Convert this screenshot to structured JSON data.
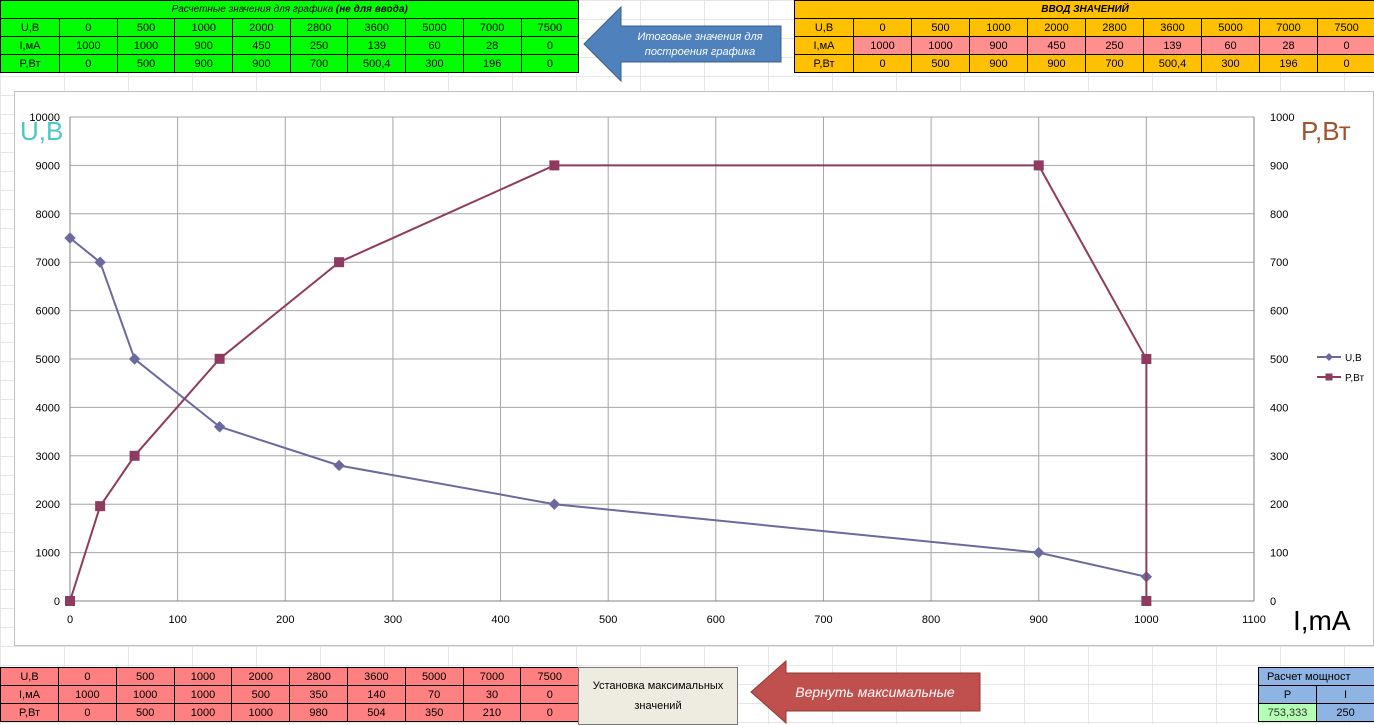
{
  "top_left_table": {
    "title": "Расчетные значения для графика",
    "title_bold": "(не для ввода)",
    "rows": [
      {
        "label": "U,B",
        "values": [
          "0",
          "500",
          "1000",
          "2000",
          "2800",
          "3600",
          "5000",
          "7000",
          "7500"
        ]
      },
      {
        "label": "I,мА",
        "values": [
          "1000",
          "1000",
          "900",
          "450",
          "250",
          "139",
          "60",
          "28",
          "0"
        ]
      },
      {
        "label": "P,Вт",
        "values": [
          "0",
          "500",
          "900",
          "900",
          "700",
          "500,4",
          "300",
          "196",
          "0"
        ]
      }
    ]
  },
  "top_right_table": {
    "title": "ВВОД ЗНАЧЕНИЙ",
    "rows": [
      {
        "label": "U,B",
        "values": [
          "0",
          "500",
          "1000",
          "2000",
          "2800",
          "3600",
          "5000",
          "7000",
          "7500"
        ]
      },
      {
        "label": "I,мА",
        "values": [
          "1000",
          "1000",
          "900",
          "450",
          "250",
          "139",
          "60",
          "28",
          "0"
        ]
      },
      {
        "label": "P,Вт",
        "values": [
          "0",
          "500",
          "900",
          "900",
          "700",
          "500,4",
          "300",
          "196",
          "0"
        ]
      }
    ]
  },
  "arrow_top": {
    "text": "Итоговые значения для построения графика",
    "color": "#4f81bd"
  },
  "bottom_table": {
    "rows": [
      {
        "label": "U,B",
        "values": [
          "0",
          "500",
          "1000",
          "2000",
          "2800",
          "3600",
          "5000",
          "7000",
          "7500"
        ]
      },
      {
        "label": "I,мА",
        "values": [
          "1000",
          "1000",
          "1000",
          "500",
          "350",
          "140",
          "70",
          "30",
          "0"
        ]
      },
      {
        "label": "P,Вт",
        "values": [
          "0",
          "500",
          "1000",
          "1000",
          "980",
          "504",
          "350",
          "210",
          "0"
        ]
      }
    ]
  },
  "max_button": {
    "label": "Установка максимальных значений"
  },
  "arrow_bottom": {
    "text": "Вернуть максимальные",
    "color": "#c0504d"
  },
  "power_panel": {
    "title": "Расчет мощност",
    "col_p": "P",
    "col_i": "I",
    "p_value": "753,333",
    "i_value": "250"
  },
  "colors": {
    "series_u": "#6a6a9e",
    "series_p": "#8e3b5f",
    "label_u": "#4cc6c6",
    "label_p": "#a0522d"
  },
  "chart_data": {
    "type": "scatter",
    "x_axis_label": "I,mA",
    "y_left_label": "U,B",
    "y_right_label": "P,Вт",
    "xlim": [
      0,
      1100
    ],
    "x_ticks": [
      0,
      100,
      200,
      300,
      400,
      500,
      600,
      700,
      800,
      900,
      1000,
      1100
    ],
    "ylim_left": [
      0,
      10000
    ],
    "y_left_ticks": [
      0,
      1000,
      2000,
      3000,
      4000,
      5000,
      6000,
      7000,
      8000,
      9000,
      10000
    ],
    "ylim_right": [
      0,
      1000
    ],
    "y_right_ticks": [
      0,
      100,
      200,
      300,
      400,
      500,
      600,
      700,
      800,
      900,
      1000
    ],
    "grid": true,
    "legend_position": "right",
    "series": [
      {
        "name": "U,B",
        "axis": "left",
        "marker": "diamond",
        "x": [
          1000,
          900,
          450,
          250,
          139,
          60,
          28,
          0
        ],
        "y": [
          500,
          1000,
          2000,
          2800,
          3600,
          5000,
          7000,
          7500
        ]
      },
      {
        "name": "P,Вт",
        "axis": "right",
        "marker": "square",
        "x": [
          0,
          28,
          60,
          139,
          250,
          450,
          900,
          1000,
          1000
        ],
        "y": [
          0,
          196,
          300,
          500.4,
          700,
          900,
          900,
          500,
          0
        ]
      }
    ]
  }
}
